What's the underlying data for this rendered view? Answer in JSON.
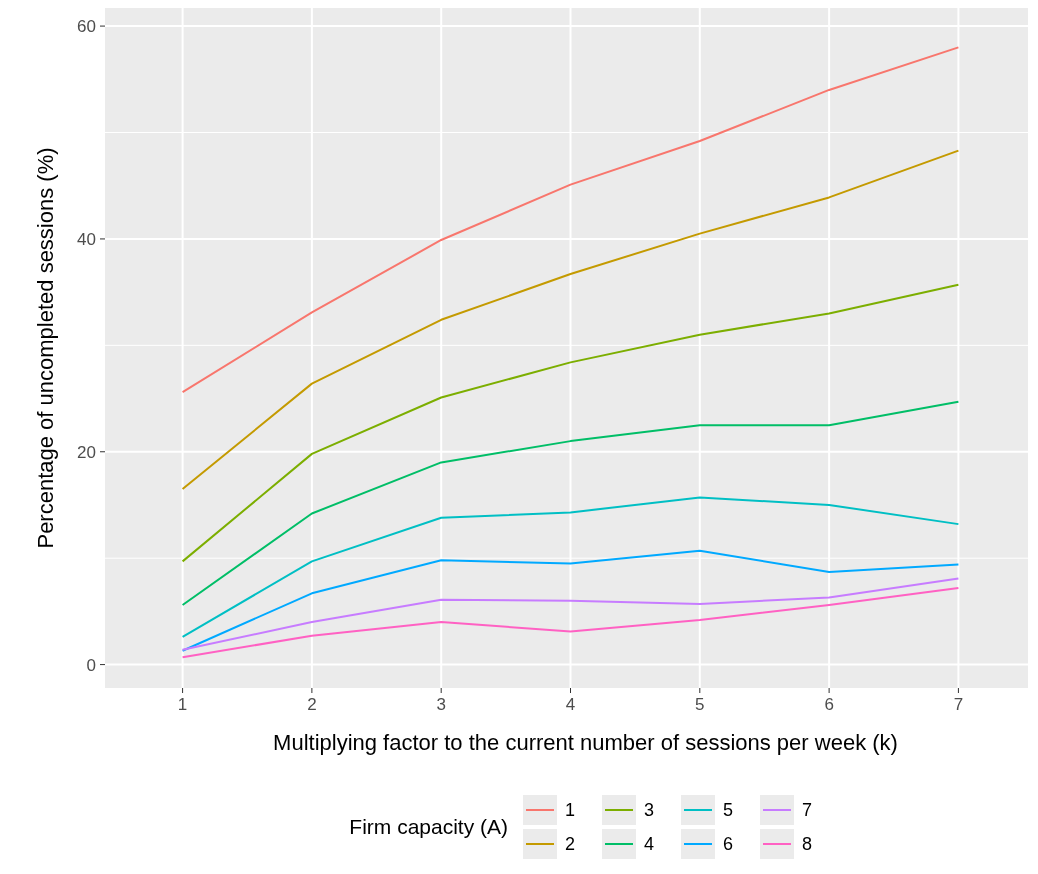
{
  "chart_data": {
    "type": "line",
    "xlabel": "Multiplying factor to the current number  of sessions per week (k)",
    "ylabel": "Percentage of uncompleted sessions (%)",
    "legend_title": "Firm capacity (A)",
    "legend": "bottom",
    "grid": true,
    "line_style": "solid",
    "marker": "none",
    "x": [
      1,
      2,
      3,
      4,
      5,
      6,
      7
    ],
    "xlim": [
      0.4,
      7.6
    ],
    "xticks": [
      1,
      2,
      3,
      4,
      5,
      6,
      7
    ],
    "ylim": [
      -2.2,
      61.7
    ],
    "yticks": [
      0,
      20,
      40,
      60
    ],
    "series": [
      {
        "name": "1",
        "color": "#f8766d",
        "values": [
          25.6,
          33.1,
          39.9,
          45.1,
          49.2,
          54.0,
          58.0
        ]
      },
      {
        "name": "2",
        "color": "#c49a00",
        "values": [
          16.5,
          26.4,
          32.4,
          36.7,
          40.5,
          43.9,
          48.3
        ]
      },
      {
        "name": "3",
        "color": "#7cae00",
        "values": [
          9.7,
          19.8,
          25.1,
          28.4,
          31.0,
          33.0,
          35.7
        ]
      },
      {
        "name": "4",
        "color": "#00be67",
        "values": [
          5.6,
          14.2,
          19.0,
          21.0,
          22.5,
          22.5,
          24.7
        ]
      },
      {
        "name": "5",
        "color": "#00bfc4",
        "values": [
          2.6,
          9.7,
          13.8,
          14.3,
          15.7,
          15.0,
          13.2
        ]
      },
      {
        "name": "6",
        "color": "#00a9ff",
        "values": [
          1.3,
          6.7,
          9.8,
          9.5,
          10.7,
          8.7,
          9.4
        ]
      },
      {
        "name": "7",
        "color": "#c77cff",
        "values": [
          1.4,
          4.0,
          6.1,
          6.0,
          5.7,
          6.3,
          8.1
        ]
      },
      {
        "name": "8",
        "color": "#ff61c3",
        "values": [
          0.7,
          2.7,
          4.0,
          3.1,
          4.2,
          5.6,
          7.2
        ]
      }
    ]
  }
}
